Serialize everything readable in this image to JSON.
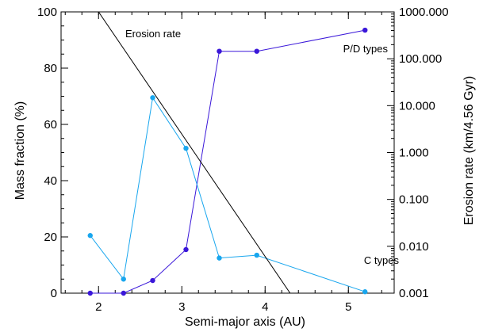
{
  "chart_data": {
    "type": "line",
    "title": "",
    "xlabel": "Semi-major axis (AU)",
    "ylabel": "Mass fraction (%)",
    "y2label": "Erosion rate (km/4.56 Gyr)",
    "xlim": [
      1.55,
      5.55
    ],
    "ylim": [
      0,
      100
    ],
    "y2lim": [
      0.001,
      1000
    ],
    "y2scale": "log",
    "xticks": [
      2,
      3,
      4,
      5
    ],
    "xtick_labels": [
      "2",
      "3",
      "4",
      "5"
    ],
    "yticks": [
      0,
      20,
      40,
      60,
      80,
      100
    ],
    "ytick_labels": [
      "0",
      "20",
      "40",
      "60",
      "80",
      "100"
    ],
    "y2ticks": [
      0.001,
      0.01,
      0.1,
      1,
      10,
      100,
      1000
    ],
    "y2tick_labels": [
      "0.001",
      "0.010",
      "0.100",
      "1.000",
      "10.000",
      "100.000",
      "1000.000"
    ],
    "grid": false,
    "series": [
      {
        "name": "P/D types",
        "axis": "left",
        "color": "#3a17d9",
        "markers": true,
        "x": [
          1.9,
          2.3,
          2.65,
          3.05,
          3.45,
          3.9,
          5.2
        ],
        "values": [
          0,
          0,
          4.5,
          15.5,
          86,
          86,
          93.5
        ]
      },
      {
        "name": "C types",
        "axis": "left",
        "color": "#18a6ee",
        "markers": true,
        "x": [
          1.9,
          2.3,
          2.65,
          3.05,
          3.45,
          3.9,
          5.2
        ],
        "values": [
          20.5,
          5,
          69.5,
          51.5,
          12.5,
          13.5,
          0.5
        ]
      },
      {
        "name": "Erosion rate",
        "axis": "right",
        "color": "#000000",
        "markers": false,
        "x": [
          2.0,
          4.3
        ],
        "values": [
          1000,
          0.001
        ]
      }
    ]
  }
}
